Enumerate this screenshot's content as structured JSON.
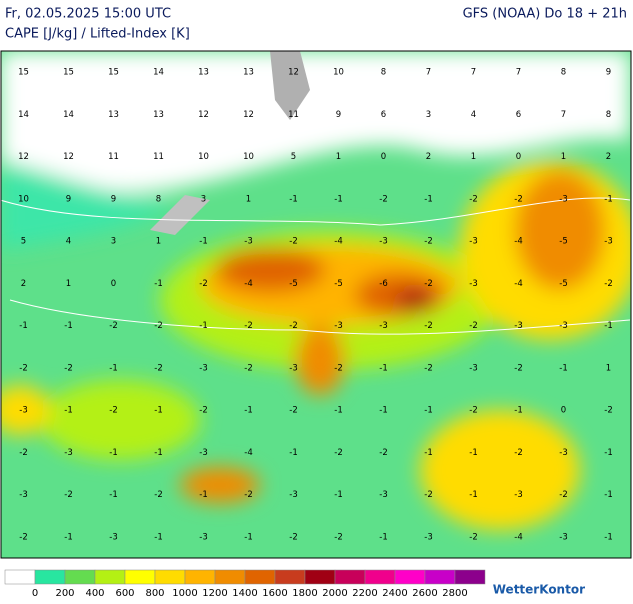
{
  "header": {
    "time": "Fr, 02.05.2025 15:00 UTC",
    "parameter": "CAPE [J/kg] / Lifted-Index [K]",
    "model": "GFS (NOAA) Do 18 + 21h"
  },
  "map": {
    "lifted_index_grid": [
      [
        15,
        15,
        15,
        14,
        13,
        13,
        12,
        10,
        8,
        7,
        7,
        7,
        8,
        9
      ],
      [
        14,
        14,
        13,
        13,
        12,
        12,
        11,
        9,
        6,
        3,
        4,
        6,
        7,
        8
      ],
      [
        12,
        12,
        11,
        11,
        10,
        10,
        5,
        1,
        0,
        2,
        1,
        0,
        1,
        2
      ],
      [
        10,
        9,
        9,
        8,
        3,
        1,
        -1,
        -1,
        -2,
        -1,
        -2,
        -2,
        -3,
        -1
      ],
      [
        5,
        4,
        3,
        1,
        -1,
        -3,
        -2,
        -4,
        -3,
        -2,
        -3,
        -4,
        -5,
        -3
      ],
      [
        2,
        1,
        0,
        -1,
        -2,
        -4,
        -5,
        -5,
        -6,
        -2,
        -3,
        -4,
        -5,
        -2
      ],
      [
        -1,
        -1,
        -2,
        -2,
        -1,
        -2,
        -2,
        -3,
        -3,
        -2,
        -2,
        -3,
        -3,
        -1
      ],
      [
        -2,
        -2,
        -1,
        -2,
        -3,
        -2,
        -3,
        -2,
        -1,
        -2,
        -3,
        -2,
        -1,
        1
      ],
      [
        -3,
        -1,
        -2,
        -1,
        -2,
        -1,
        -2,
        -1,
        -1,
        -1,
        -2,
        -1,
        0,
        -2
      ],
      [
        -2,
        -3,
        -1,
        -1,
        -3,
        -4,
        -1,
        -2,
        -2,
        -1,
        -1,
        -2,
        -3,
        -1
      ],
      [
        -3,
        -2,
        -1,
        -2,
        -1,
        -2,
        -3,
        -1,
        -3,
        -2,
        -1,
        -3,
        -2,
        -1
      ],
      [
        -2,
        -1,
        -3,
        -1,
        -3,
        -1,
        -2,
        -2,
        -1,
        -3,
        -2,
        -4,
        -3,
        -1
      ]
    ]
  },
  "legend": {
    "colors": [
      "#ffffff",
      "#28e6a0",
      "#64dc50",
      "#b4f014",
      "#ffff00",
      "#ffdc00",
      "#ffb400",
      "#f08c00",
      "#e06400",
      "#c83c1e",
      "#a00014",
      "#c8005a",
      "#f0008c",
      "#ff00c8",
      "#c800c8",
      "#8c008c"
    ],
    "labels": [
      0,
      200,
      400,
      600,
      800,
      1000,
      1200,
      1400,
      1600,
      1800,
      2000,
      2200,
      2400,
      2600,
      2800
    ]
  },
  "brand": "WetterKontor"
}
